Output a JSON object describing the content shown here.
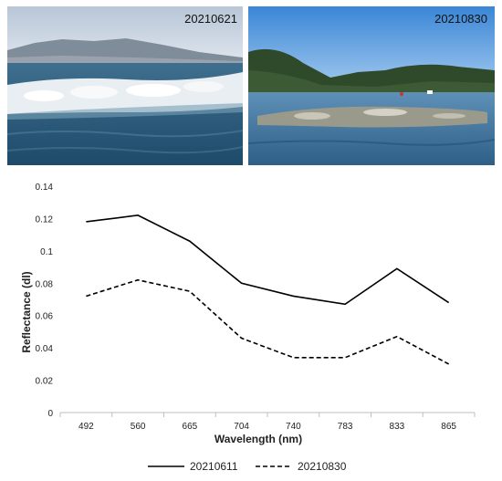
{
  "photos": [
    {
      "label": "20210621"
    },
    {
      "label": "20210830"
    }
  ],
  "chart_data": {
    "type": "line",
    "categories": [
      "492",
      "560",
      "665",
      "704",
      "740",
      "783",
      "833",
      "865"
    ],
    "series": [
      {
        "name": "20210611",
        "values": [
          0.118,
          0.122,
          0.106,
          0.08,
          0.072,
          0.067,
          0.089,
          0.068
        ],
        "style": "solid",
        "color": "#000000"
      },
      {
        "name": "20210830",
        "values": [
          0.072,
          0.082,
          0.075,
          0.046,
          0.034,
          0.034,
          0.047,
          0.03
        ],
        "style": "dashed",
        "color": "#000000"
      }
    ],
    "title": "",
    "xlabel": "Wavelength (nm)",
    "ylabel": "Reflectance (dl)",
    "ylim": [
      0,
      0.14
    ],
    "yticks": [
      "0",
      "0.02",
      "0.04",
      "0.06",
      "0.08",
      "0.1",
      "0.12",
      "0.14"
    ],
    "grid": false,
    "legend_position": "bottom"
  }
}
